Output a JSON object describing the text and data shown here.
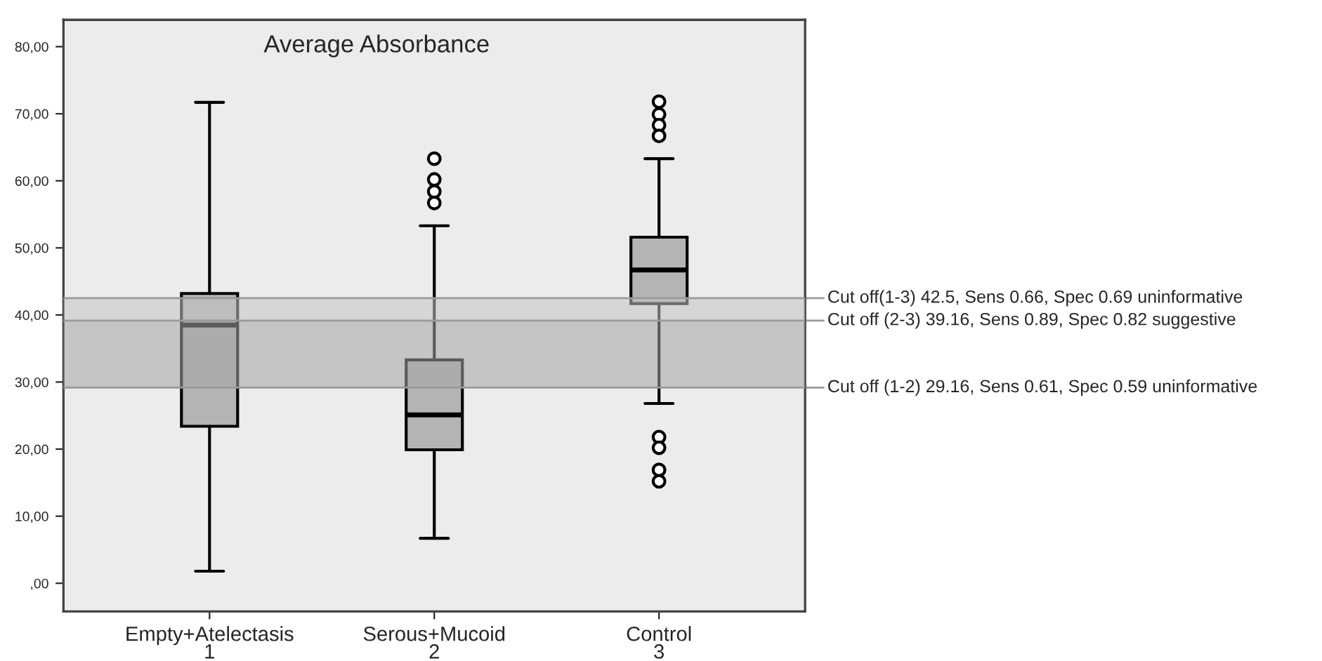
{
  "chart_data": {
    "type": "box",
    "title": "Average Absorbance",
    "categories": [
      "Empty+Atelectasis\n1",
      "Serous+Mucoid\n2",
      "Control\n3"
    ],
    "series": [
      {
        "color": "#b4b4b4",
        "boxes": [
          {
            "low": 1.8,
            "q1": 23.4,
            "median": 38.5,
            "q3": 43.2,
            "high": 71.7
          },
          {
            "low": 6.7,
            "q1": 19.9,
            "median": 25.1,
            "q3": 33.3,
            "high": 53.3,
            "outliers": [
              63.3,
              60.2,
              58.4,
              56.7
            ]
          },
          {
            "low": 26.8,
            "q1": 41.7,
            "median": 46.7,
            "q3": 51.6,
            "high": 63.3,
            "outliers": [
              71.8,
              69.9,
              68.3,
              66.7,
              21.8,
              20.2,
              16.9,
              15.2
            ]
          }
        ]
      }
    ],
    "ylim": [
      -4.2,
      84
    ],
    "yticks": [
      {
        "value": 0,
        "label": ",00"
      },
      {
        "value": 10,
        "label": "10,00"
      },
      {
        "value": 20,
        "label": "20,00"
      },
      {
        "value": 30,
        "label": "30,00"
      },
      {
        "value": 40,
        "label": "40,00"
      },
      {
        "value": 50,
        "label": "50,00"
      },
      {
        "value": 60,
        "label": "60,00"
      },
      {
        "value": 70,
        "label": "70,00"
      },
      {
        "value": 80,
        "label": "80,00"
      }
    ],
    "bands": [
      {
        "axis": "y",
        "from": 39.16,
        "to": 42.5,
        "color": "#c4c4c4"
      },
      {
        "axis": "y",
        "from": 29.16,
        "to": 39.16,
        "color": "#a6a6a6"
      }
    ],
    "ref_lines": [
      {
        "axis": "y",
        "value": 42.5,
        "label": "Cut off(1-3) 42.5, Sens 0.66, Spec 0.69 uninformative",
        "color": "#9a9a9a"
      },
      {
        "axis": "y",
        "value": 39.16,
        "label": "Cut off (2-3) 39.16, Sens 0.89, Spec 0.82 suggestive",
        "color": "#9a9a9a"
      },
      {
        "axis": "y",
        "value": 29.16,
        "label": "Cut off (1-2) 29.16, Sens 0.61, Spec 0.59 uninformative",
        "color": "#9a9a9a"
      }
    ],
    "grid": false,
    "legend": false
  }
}
